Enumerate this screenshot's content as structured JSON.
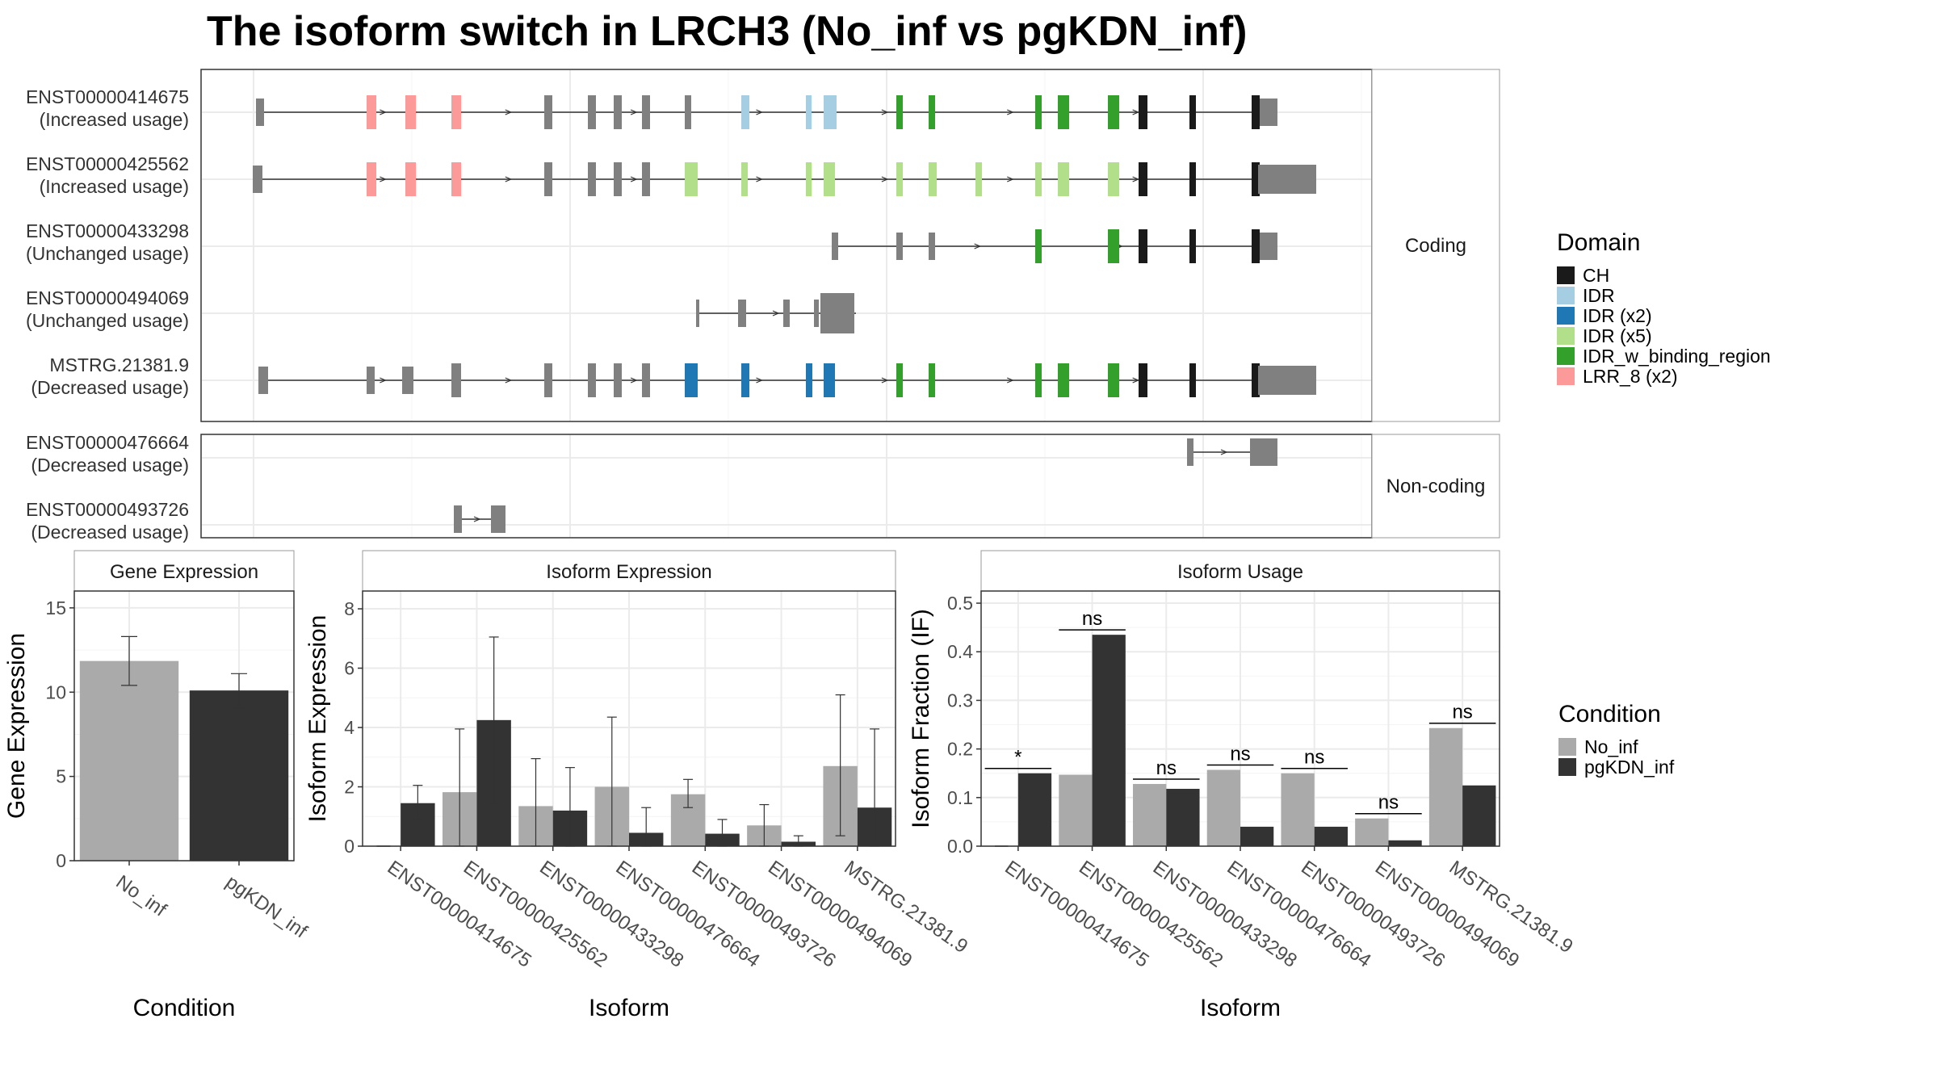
{
  "title": "The isoform switch in LRCH3 (No_inf vs pgKDN_inf)",
  "colors": {
    "CH": "#1a1a1a",
    "IDR": "#a6cee3",
    "IDR (x2)": "#1f78b4",
    "IDR (x5)": "#b2df8a",
    "IDR_w_binding_region": "#33a02c",
    "LRR_8 (x2)": "#fb9a99",
    "exon": "#808080",
    "No_inf": "#aaaaaa",
    "pgKDN_inf": "#333333"
  },
  "structure": {
    "facets": [
      {
        "label": "Coding",
        "transcripts": [
          {
            "id": "ENST00000414675",
            "usage": "(Increased usage)"
          },
          {
            "id": "ENST00000425562",
            "usage": "(Increased usage)"
          },
          {
            "id": "ENST00000433298",
            "usage": "(Unchanged usage)"
          },
          {
            "id": "ENST00000494069",
            "usage": "(Unchanged usage)"
          },
          {
            "id": "MSTRG.21381.9",
            "usage": "(Decreased usage)"
          }
        ]
      },
      {
        "label": "Non-coding",
        "transcripts": [
          {
            "id": "ENST00000476664",
            "usage": "(Decreased usage)"
          },
          {
            "id": "ENST00000493726",
            "usage": "(Decreased usage)"
          }
        ]
      }
    ]
  },
  "legend_domain": {
    "title": "Domain",
    "items": [
      "CH",
      "IDR",
      "IDR (x2)",
      "IDR (x5)",
      "IDR_w_binding_region",
      "LRR_8 (x2)"
    ]
  },
  "legend_condition": {
    "title": "Condition",
    "items": [
      "No_inf",
      "pgKDN_inf"
    ]
  },
  "chart_data": [
    {
      "type": "bar",
      "panel_title": "Gene Expression",
      "xlabel": "Condition",
      "ylabel": "Gene Expression",
      "ylim": [
        0,
        16
      ],
      "yticks": [
        0,
        5,
        10,
        15
      ],
      "categories": [
        "No_inf",
        "pgKDN_inf"
      ],
      "values": [
        11.85,
        10.1
      ],
      "errors": [
        [
          10.4,
          13.3
        ],
        [
          9.1,
          11.1
        ]
      ],
      "colors": [
        "#aaaaaa",
        "#333333"
      ]
    },
    {
      "type": "bar",
      "panel_title": "Isoform Expression",
      "xlabel": "Isoform",
      "ylabel": "Isoform Expression",
      "ylim": [
        0,
        8.6
      ],
      "yticks": [
        0,
        2,
        4,
        6,
        8
      ],
      "categories": [
        "ENST00000414675",
        "ENST00000425562",
        "ENST00000433298",
        "ENST00000476664",
        "ENST00000493726",
        "ENST00000494069",
        "MSTRG.21381.9"
      ],
      "series": [
        {
          "name": "No_inf",
          "values": [
            0.0,
            1.82,
            1.35,
            2.0,
            1.75,
            0.7,
            2.7
          ],
          "errors": [
            [
              0,
              0
            ],
            [
              0,
              3.95
            ],
            [
              0,
              2.95
            ],
            [
              0,
              4.35
            ],
            [
              1.3,
              2.25
            ],
            [
              0,
              1.4
            ],
            [
              0.35,
              5.1
            ]
          ]
        },
        {
          "name": "pgKDN_inf",
          "values": [
            1.45,
            4.25,
            1.2,
            0.45,
            0.42,
            0.15,
            1.3
          ],
          "errors": [
            [
              0.9,
              2.05
            ],
            [
              1.45,
              7.05
            ],
            [
              0,
              2.65
            ],
            [
              0,
              1.3
            ],
            [
              0,
              0.9
            ],
            [
              0,
              0.35
            ],
            [
              0,
              3.95
            ]
          ]
        }
      ]
    },
    {
      "type": "bar",
      "panel_title": "Isoform Usage",
      "xlabel": "Isoform",
      "ylabel": "Isoform Fraction (IF)",
      "ylim": [
        0,
        0.525
      ],
      "yticks": [
        0.0,
        0.1,
        0.2,
        0.3,
        0.4,
        0.5
      ],
      "ytick_labels": [
        "0.0",
        "0.1",
        "0.2",
        "0.3",
        "0.4",
        "0.5"
      ],
      "categories": [
        "ENST00000414675",
        "ENST00000425562",
        "ENST00000433298",
        "ENST00000476664",
        "ENST00000493726",
        "ENST00000494069",
        "MSTRG.21381.9"
      ],
      "series": [
        {
          "name": "No_inf",
          "values": [
            0.0,
            0.147,
            0.128,
            0.157,
            0.15,
            0.057,
            0.243
          ]
        },
        {
          "name": "pgKDN_inf",
          "values": [
            0.15,
            0.435,
            0.118,
            0.04,
            0.04,
            0.012,
            0.125
          ]
        }
      ],
      "significance": [
        "*",
        "ns",
        "ns",
        "ns",
        "ns",
        "ns",
        "ns"
      ]
    }
  ]
}
